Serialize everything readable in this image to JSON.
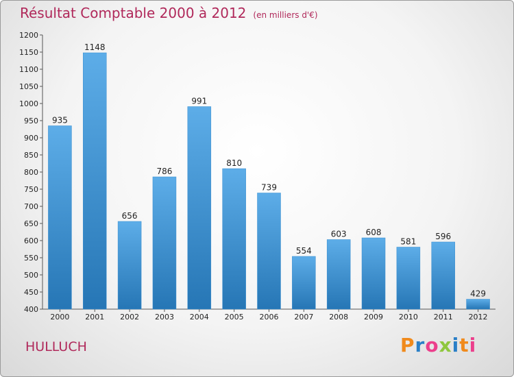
{
  "header": {
    "title": "Résultat Comptable 2000 à 2012",
    "unit": "(en milliers d'€)"
  },
  "footer": {
    "city": "HULLUCH",
    "logo": [
      "P",
      "r",
      "o",
      "x",
      "i",
      "t",
      "i"
    ]
  },
  "colors": {
    "bar_light": "#5dade8",
    "bar_dark": "#2676b5",
    "title": "#b0285a",
    "logo": [
      "#f08a1c",
      "#2a7fc7",
      "#ec3f8c",
      "#8fc73e",
      "#2a7fc7",
      "#f08a1c",
      "#ec3f8c"
    ]
  },
  "chart_data": {
    "type": "bar",
    "title": "Résultat Comptable 2000 à 2012",
    "categories": [
      "2000",
      "2001",
      "2002",
      "2003",
      "2004",
      "2005",
      "2006",
      "2007",
      "2008",
      "2009",
      "2010",
      "2011",
      "2012"
    ],
    "values": [
      935,
      1148,
      656,
      786,
      991,
      810,
      739,
      554,
      603,
      608,
      581,
      596,
      429
    ],
    "ylim": [
      400,
      1200
    ],
    "yticks": [
      400,
      450,
      500,
      550,
      600,
      650,
      700,
      750,
      800,
      850,
      900,
      950,
      1000,
      1050,
      1100,
      1150,
      1200
    ],
    "grid": false,
    "legend": "none"
  }
}
